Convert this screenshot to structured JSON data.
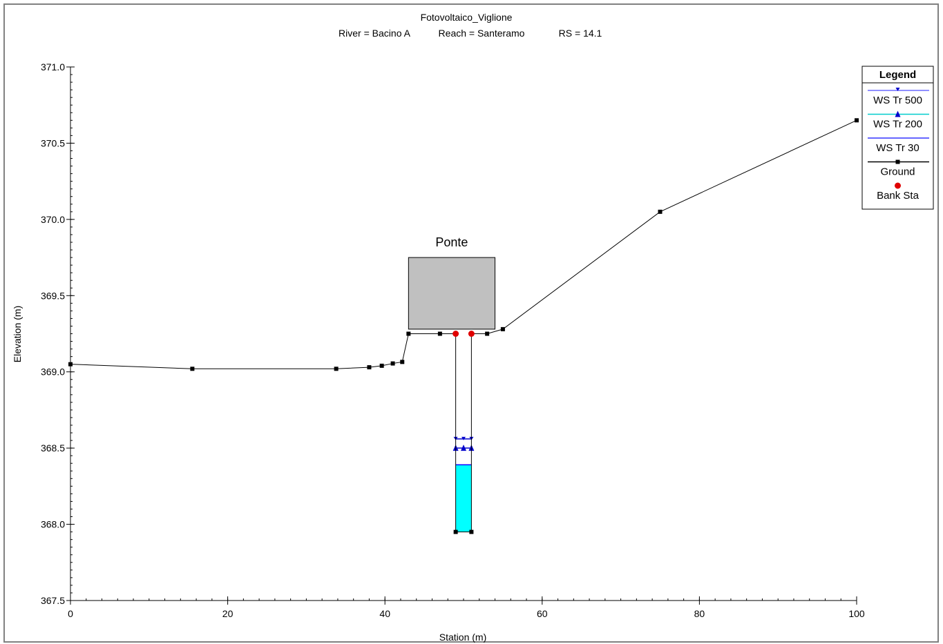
{
  "chart_data": {
    "type": "line",
    "title": "Fotovoltaico_Viglione",
    "subtitle": {
      "river": "River = Bacino A",
      "reach": "Reach = Santeramo",
      "rs": "RS = 14.1"
    },
    "xlabel": "Station (m)",
    "ylabel": "Elevation (m)",
    "xlim": [
      0,
      100
    ],
    "ylim": [
      367.5,
      371.0
    ],
    "x_ticks": [
      "0",
      "20",
      "40",
      "60",
      "80",
      "100"
    ],
    "x_tick_values": [
      0,
      20,
      40,
      60,
      80,
      100
    ],
    "y_ticks": [
      "367.5",
      "368.0",
      "368.5",
      "369.0",
      "369.5",
      "370.0",
      "370.5",
      "371.0"
    ],
    "y_tick_values": [
      367.5,
      368.0,
      368.5,
      369.0,
      369.5,
      370.0,
      370.5,
      371.0
    ],
    "ground": {
      "name": "Ground",
      "color": "#000000",
      "x": [
        0,
        15.5,
        33.8,
        38.0,
        39.6,
        41.0,
        42.2,
        43.0,
        47.0,
        49.0,
        49.0,
        51.0,
        51.0,
        53.0,
        55.0,
        75.0,
        100.0
      ],
      "y": [
        369.05,
        369.02,
        369.02,
        369.03,
        369.04,
        369.055,
        369.065,
        369.25,
        369.25,
        369.25,
        367.95,
        367.95,
        369.25,
        369.25,
        369.28,
        370.05,
        370.65
      ]
    },
    "bridge": {
      "label": "Ponte",
      "x_left": 43.0,
      "x_right": 54.0,
      "low_chord": 369.28,
      "high_chord": 369.75,
      "color": "#c0c0c0"
    },
    "bank_stations": {
      "name": "Bank Sta",
      "color": "#e00000",
      "x": [
        49.0,
        51.0
      ],
      "y": [
        369.25,
        369.25
      ]
    },
    "water_surfaces": [
      {
        "name": "WS Tr 500",
        "elevation": 368.56,
        "x_left": 49.0,
        "x_right": 51.0,
        "color": "#0000cc",
        "marker": "triangle-down"
      },
      {
        "name": "WS Tr 200",
        "elevation": 368.5,
        "x_left": 49.0,
        "x_right": 51.0,
        "color": "#0000cc",
        "marker": "triangle-up"
      },
      {
        "name": "WS Tr 30",
        "elevation": 368.39,
        "x_left": 49.0,
        "x_right": 51.0,
        "color": "#0000ff",
        "marker": "none"
      }
    ],
    "water_fill_color": "#00ffff",
    "legend": {
      "title": "Legend",
      "position": "top-right",
      "entries": [
        {
          "label": "WS Tr 500",
          "line_color": "#6a6aff",
          "marker": "triangle-down",
          "marker_color": "#0000cc"
        },
        {
          "label": "WS Tr 200",
          "line_color": "#00cccc",
          "marker": "triangle-up",
          "marker_color": "#0000cc"
        },
        {
          "label": "WS Tr 30",
          "line_color": "#3333ff",
          "marker": "none",
          "marker_color": "#0000ff"
        },
        {
          "label": "Ground",
          "line_color": "#000000",
          "marker": "square",
          "marker_color": "#000000"
        },
        {
          "label": "Bank Sta",
          "line_color": "none",
          "marker": "circle",
          "marker_color": "#e00000"
        }
      ]
    },
    "grid": false
  }
}
